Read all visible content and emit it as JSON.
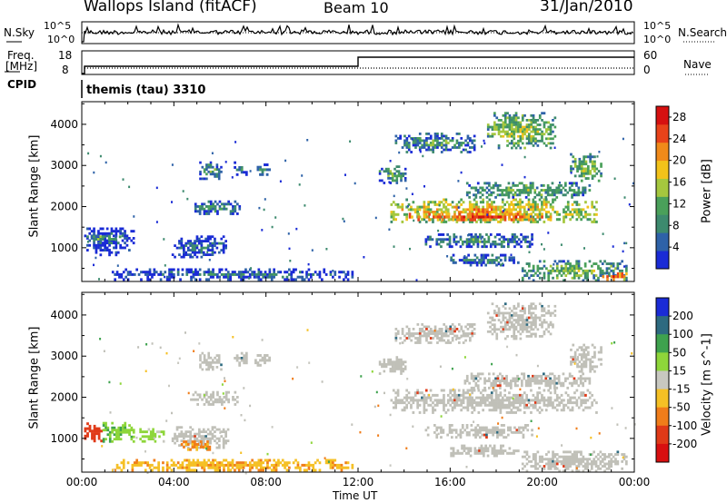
{
  "header": {
    "title": "Wallops Island (fitACF)",
    "beam": "Beam 10",
    "date": "31/Jan/2010"
  },
  "panels": {
    "nsky_label": "N.Sky",
    "nsky_ticks": [
      "10^5",
      "10^0"
    ],
    "nsearch_label": "N.Search",
    "nsearch_ticks": [
      "10^5",
      "10^0"
    ],
    "freq_label": "Freq.",
    "freq_unit": "[MHz]",
    "freq_ticks": [
      "18",
      "8"
    ],
    "nave_label": "Nave",
    "nave_ticks": [
      "60",
      "0"
    ],
    "cpid_label": "CPID",
    "cpid_value": "themis (tau) 3310"
  },
  "colors": {
    "power_scale": [
      "#1a2bd6",
      "#2e62a8",
      "#3d8a6e",
      "#4aa05a",
      "#a5c73e",
      "#f2c21a",
      "#f08a1a",
      "#e8431a",
      "#d61010"
    ],
    "velocity_scale": [
      "#1a2bd6",
      "#2d6a80",
      "#3ea24e",
      "#8ed63a",
      "#c8c8c0",
      "#f5c025",
      "#f07d1a",
      "#e03a18",
      "#d80f10"
    ],
    "ground_scatter": "#c0c0b8"
  },
  "chart_data": [
    {
      "type": "heatmap",
      "name": "power",
      "xlabel": "",
      "ylabel": "Slant Range [km]",
      "x_ticks": [
        "00:00",
        "04:00",
        "08:00",
        "12:00",
        "16:00",
        "20:00",
        "00:00"
      ],
      "y_ticks": [
        1000,
        2000,
        3000,
        4000
      ],
      "ylim": [
        180,
        4550
      ],
      "xlim_hours": [
        0,
        24
      ],
      "colorbar": {
        "label": "Power [dB]",
        "ticks": [
          4,
          8,
          12,
          16,
          20,
          24,
          28
        ],
        "range": [
          0,
          30
        ]
      },
      "regions": [
        {
          "t0": 0.1,
          "t1": 2.3,
          "r0": 800,
          "r1": 1550,
          "v": 6
        },
        {
          "t0": 0.2,
          "t1": 1.8,
          "r0": 1180,
          "r1": 1300,
          "v": 14
        },
        {
          "t0": 3.9,
          "t1": 6.4,
          "r0": 750,
          "r1": 1300,
          "v": 7
        },
        {
          "t0": 4.7,
          "t1": 6.9,
          "r0": 1800,
          "r1": 2150,
          "v": 10
        },
        {
          "t0": 5.1,
          "t1": 6.1,
          "r0": 2650,
          "r1": 3100,
          "v": 11
        },
        {
          "t0": 6.6,
          "t1": 7.2,
          "r0": 2750,
          "r1": 3100,
          "v": 8
        },
        {
          "t0": 7.5,
          "t1": 8.2,
          "r0": 2750,
          "r1": 3050,
          "v": 9
        },
        {
          "t0": 1.3,
          "t1": 11.8,
          "r0": 200,
          "r1": 500,
          "v": 7
        },
        {
          "t0": 12.9,
          "t1": 14.1,
          "r0": 2550,
          "r1": 3000,
          "v": 12
        },
        {
          "t0": 13.4,
          "t1": 22.4,
          "r0": 1600,
          "r1": 2200,
          "v": 20
        },
        {
          "t0": 14.2,
          "t1": 20.6,
          "r0": 1650,
          "r1": 1850,
          "v": 27
        },
        {
          "t0": 16.6,
          "t1": 22.1,
          "r0": 2200,
          "r1": 2600,
          "v": 13
        },
        {
          "t0": 14.9,
          "t1": 19.6,
          "r0": 1000,
          "r1": 1350,
          "v": 10
        },
        {
          "t0": 16.0,
          "t1": 19.0,
          "r0": 550,
          "r1": 850,
          "v": 9
        },
        {
          "t0": 13.6,
          "t1": 17.1,
          "r0": 3300,
          "r1": 3800,
          "v": 11
        },
        {
          "t0": 17.6,
          "t1": 20.6,
          "r0": 3400,
          "r1": 4300,
          "v": 16
        },
        {
          "t0": 21.2,
          "t1": 22.6,
          "r0": 2600,
          "r1": 3300,
          "v": 15
        },
        {
          "t0": 19.1,
          "t1": 23.7,
          "r0": 180,
          "r1": 700,
          "v": 14
        },
        {
          "t0": 22.6,
          "t1": 23.7,
          "r0": 200,
          "r1": 400,
          "v": 26
        }
      ]
    },
    {
      "type": "heatmap",
      "name": "velocity",
      "xlabel": "Time UT",
      "ylabel": "Slant Range [km]",
      "x_ticks": [
        "00:00",
        "04:00",
        "08:00",
        "12:00",
        "16:00",
        "20:00",
        "00:00"
      ],
      "y_ticks": [
        1000,
        2000,
        3000,
        4000
      ],
      "ylim": [
        180,
        4550
      ],
      "xlim_hours": [
        0,
        24
      ],
      "colorbar": {
        "label": "Velocity [m s^-1]",
        "ticks": [
          200,
          100,
          50,
          15,
          -15,
          -50,
          -100,
          -200
        ]
      },
      "regions": [
        {
          "t0": 0.1,
          "t1": 0.9,
          "r0": 850,
          "r1": 1450,
          "v": -120,
          "gs": false
        },
        {
          "t0": 0.9,
          "t1": 2.3,
          "r0": 900,
          "r1": 1400,
          "v": 40,
          "gs": false
        },
        {
          "t0": 2.5,
          "t1": 3.6,
          "r0": 900,
          "r1": 1250,
          "v": 30,
          "gs": false
        },
        {
          "t0": 3.9,
          "t1": 6.4,
          "r0": 750,
          "r1": 1300,
          "v": 0,
          "gs": true
        },
        {
          "t0": 4.2,
          "t1": 5.6,
          "r0": 700,
          "r1": 950,
          "v": -60,
          "gs": false
        },
        {
          "t0": 4.7,
          "t1": 6.9,
          "r0": 1800,
          "r1": 2150,
          "v": 0,
          "gs": true
        },
        {
          "t0": 5.1,
          "t1": 6.1,
          "r0": 2650,
          "r1": 3100,
          "v": 0,
          "gs": true
        },
        {
          "t0": 6.6,
          "t1": 7.2,
          "r0": 2750,
          "r1": 3100,
          "v": 0,
          "gs": true
        },
        {
          "t0": 7.5,
          "t1": 8.2,
          "r0": 2750,
          "r1": 3050,
          "v": 0,
          "gs": true
        },
        {
          "t0": 1.3,
          "t1": 11.8,
          "r0": 200,
          "r1": 500,
          "v": -40,
          "gs": false
        },
        {
          "t0": 12.9,
          "t1": 14.1,
          "r0": 2550,
          "r1": 3000,
          "v": 0,
          "gs": true
        },
        {
          "t0": 13.4,
          "t1": 22.4,
          "r0": 1600,
          "r1": 2200,
          "v": 0,
          "gs": true
        },
        {
          "t0": 16.6,
          "t1": 22.1,
          "r0": 2200,
          "r1": 2600,
          "v": 0,
          "gs": true
        },
        {
          "t0": 14.9,
          "t1": 19.6,
          "r0": 1000,
          "r1": 1350,
          "v": 0,
          "gs": true
        },
        {
          "t0": 16.0,
          "t1": 19.0,
          "r0": 550,
          "r1": 850,
          "v": 0,
          "gs": true
        },
        {
          "t0": 13.6,
          "t1": 17.1,
          "r0": 3300,
          "r1": 3800,
          "v": 0,
          "gs": true
        },
        {
          "t0": 17.6,
          "t1": 20.6,
          "r0": 3400,
          "r1": 4300,
          "v": 0,
          "gs": true
        },
        {
          "t0": 21.2,
          "t1": 22.6,
          "r0": 2600,
          "r1": 3300,
          "v": 0,
          "gs": true
        },
        {
          "t0": 19.1,
          "t1": 23.7,
          "r0": 180,
          "r1": 700,
          "v": 0,
          "gs": true
        }
      ]
    }
  ]
}
